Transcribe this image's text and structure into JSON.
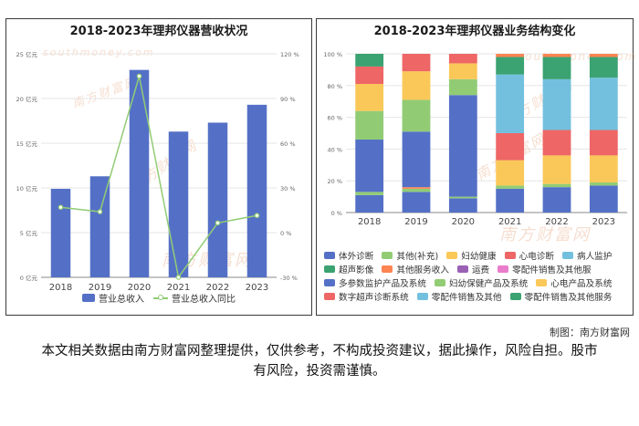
{
  "left_title": "2018-2023年理邦仪器营收状况",
  "right_title": "2018-2023年理邦仪器业务结构变化",
  "watermark": "南方财富网",
  "watermark_url": "southmoney.com",
  "credit": "制图：南方财富网",
  "disclaimer": "本文相关数据由南方财富网整理提供，仅供参考，不构成投资建议，据此操作，风险自担。股市有风险，投资需谨慎。",
  "colors": {
    "bar": "#5470c6",
    "line": "#91cc75"
  },
  "chart_data": [
    {
      "type": "bar",
      "title": "2018-2023年理邦仪器营收状况",
      "categories": [
        "2018",
        "2019",
        "2020",
        "2021",
        "2022",
        "2023"
      ],
      "y_left_ticks": [
        "0 亿元",
        "5 亿元",
        "10 亿元",
        "15 亿元",
        "20 亿元",
        "25 亿元"
      ],
      "y_right_ticks": [
        "-30 %",
        "0 %",
        "30 %",
        "60 %",
        "90 %",
        "120 %"
      ],
      "ylim": [
        0,
        25
      ],
      "ylim_right": [
        -30,
        120
      ],
      "series": [
        {
          "name": "营业总收入",
          "type": "bar",
          "values": [
            9.9,
            11.3,
            23.2,
            16.3,
            17.3,
            19.3
          ]
        },
        {
          "name": "营业总收入同比",
          "type": "line",
          "values": [
            17.0,
            14.0,
            105.0,
            -30.0,
            6.5,
            11.5
          ]
        }
      ],
      "legend": "bottom"
    },
    {
      "type": "bar",
      "stacked": true,
      "title": "2018-2023年理邦仪器业务结构变化",
      "categories": [
        "2018",
        "2019",
        "2020",
        "2021",
        "2022",
        "2023"
      ],
      "y_ticks": [
        "0 %",
        "20 %",
        "40 %",
        "60 %",
        "80 %",
        "100 %"
      ],
      "ylim": [
        0,
        100
      ],
      "legend": "bottom",
      "legend_entries": [
        {
          "name": "体外诊断",
          "color": "#5470c6"
        },
        {
          "name": "其他(补充)",
          "color": "#91cc75"
        },
        {
          "name": "妇幼健康",
          "color": "#fac858"
        },
        {
          "name": "心电诊断",
          "color": "#ee6666"
        },
        {
          "name": "病人监护",
          "color": "#73c0de"
        },
        {
          "name": "超声影像",
          "color": "#3ba272"
        },
        {
          "name": "其他服务收入",
          "color": "#fc8452"
        },
        {
          "name": "运费",
          "color": "#9a60b4"
        },
        {
          "name": "零配件销售及其他服",
          "color": "#ea7ccc"
        },
        {
          "name": "多参数监护产品及系统",
          "color": "#5470c6"
        },
        {
          "name": "妇幼保健产品及系统",
          "color": "#91cc75"
        },
        {
          "name": "心电产品及系统",
          "color": "#fac858"
        },
        {
          "name": "数字超声诊断系统",
          "color": "#ee6666"
        },
        {
          "name": "零配件销售及其他",
          "color": "#73c0de"
        },
        {
          "name": "零配件销售及其他服务",
          "color": "#3ba272"
        }
      ],
      "stacks": [
        [
          {
            "series": "多参数监护产品及系统",
            "value": 11,
            "color": "#5470c6"
          },
          {
            "series": "其他(补充)",
            "value": 2,
            "color": "#91cc75"
          },
          {
            "series": "体外诊断",
            "value": 33,
            "color": "#5470c6"
          },
          {
            "series": "其他(补充)",
            "value": 18,
            "color": "#91cc75"
          },
          {
            "series": "妇幼健康",
            "value": 17,
            "color": "#fac858"
          },
          {
            "series": "心电诊断",
            "value": 11,
            "color": "#ee6666"
          },
          {
            "series": "超声影像",
            "value": 8,
            "color": "#3ba272"
          }
        ],
        [
          {
            "series": "多参数监护产品及系统",
            "value": 13,
            "color": "#5470c6"
          },
          {
            "series": "其他(补充)",
            "value": 2,
            "color": "#91cc75"
          },
          {
            "series": "其他服务收入",
            "value": 1,
            "color": "#fc8452"
          },
          {
            "series": "体外诊断",
            "value": 35,
            "color": "#5470c6"
          },
          {
            "series": "其他(补充)",
            "value": 20,
            "color": "#91cc75"
          },
          {
            "series": "妇幼健康",
            "value": 18,
            "color": "#fac858"
          },
          {
            "series": "心电诊断",
            "value": 11,
            "color": "#ee6666"
          }
        ],
        [
          {
            "series": "多参数监护产品及系统",
            "value": 9,
            "color": "#5470c6"
          },
          {
            "series": "其他(补充)",
            "value": 1,
            "color": "#91cc75"
          },
          {
            "series": "体外诊断",
            "value": 64,
            "color": "#5470c6"
          },
          {
            "series": "其他(补充)",
            "value": 10,
            "color": "#91cc75"
          },
          {
            "series": "妇幼健康",
            "value": 10,
            "color": "#fac858"
          },
          {
            "series": "心电诊断",
            "value": 6,
            "color": "#ee6666"
          }
        ],
        [
          {
            "series": "多参数监护产品及系统",
            "value": 15,
            "color": "#5470c6"
          },
          {
            "series": "妇幼保健产品及系统",
            "value": 2,
            "color": "#91cc75"
          },
          {
            "series": "心电产品及系统",
            "value": 16,
            "color": "#fac858"
          },
          {
            "series": "数字超声诊断系统",
            "value": 17,
            "color": "#ee6666"
          },
          {
            "series": "零配件销售及其他",
            "value": 37,
            "color": "#73c0de"
          },
          {
            "series": "零配件销售及其他服务",
            "value": 11,
            "color": "#3ba272"
          },
          {
            "series": "其他服务收入",
            "value": 2,
            "color": "#fc8452"
          }
        ],
        [
          {
            "series": "多参数监护产品及系统",
            "value": 16,
            "color": "#5470c6"
          },
          {
            "series": "妇幼保健产品及系统",
            "value": 2,
            "color": "#91cc75"
          },
          {
            "series": "心电产品及系统",
            "value": 18,
            "color": "#fac858"
          },
          {
            "series": "数字超声诊断系统",
            "value": 16,
            "color": "#ee6666"
          },
          {
            "series": "零配件销售及其他",
            "value": 32,
            "color": "#73c0de"
          },
          {
            "series": "零配件销售及其他服务",
            "value": 14,
            "color": "#3ba272"
          },
          {
            "series": "其他服务收入",
            "value": 2,
            "color": "#fc8452"
          }
        ],
        [
          {
            "series": "多参数监护产品及系统",
            "value": 17,
            "color": "#5470c6"
          },
          {
            "series": "妇幼保健产品及系统",
            "value": 2,
            "color": "#91cc75"
          },
          {
            "series": "心电产品及系统",
            "value": 17,
            "color": "#fac858"
          },
          {
            "series": "数字超声诊断系统",
            "value": 16,
            "color": "#ee6666"
          },
          {
            "series": "零配件销售及其他",
            "value": 33,
            "color": "#73c0de"
          },
          {
            "series": "零配件销售及其他服务",
            "value": 13,
            "color": "#3ba272"
          },
          {
            "series": "其他服务收入",
            "value": 2,
            "color": "#fc8452"
          }
        ]
      ]
    }
  ]
}
